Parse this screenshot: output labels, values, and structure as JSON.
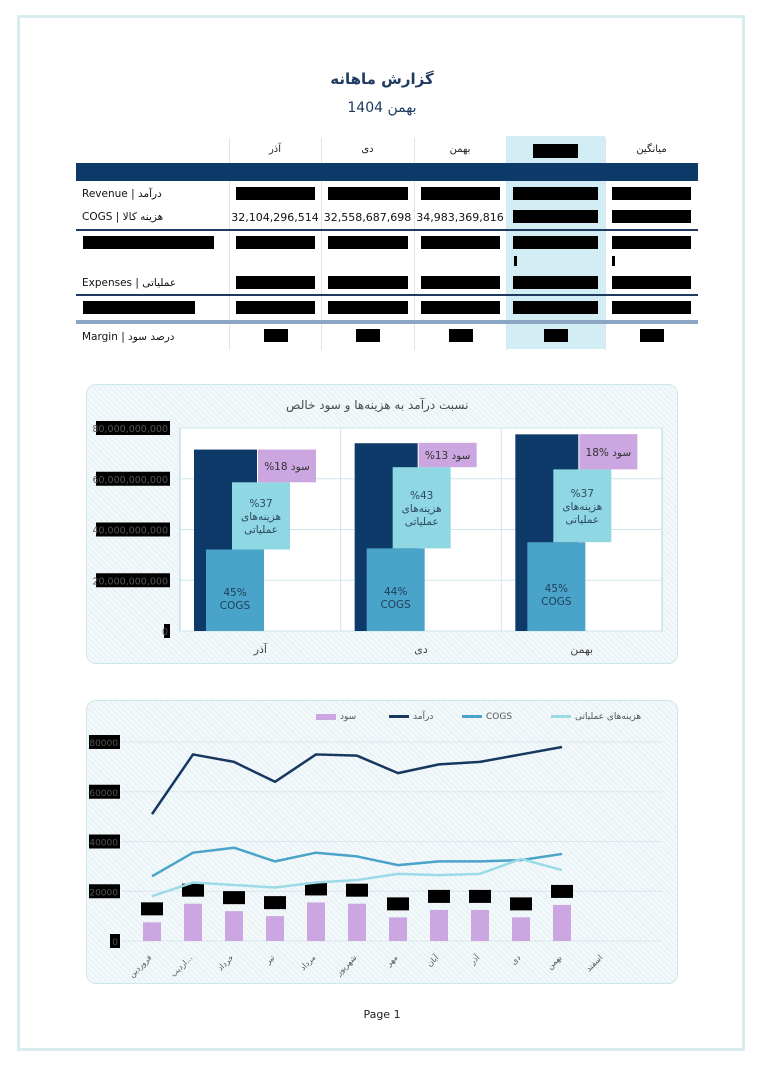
{
  "report": {
    "title": "گزارش ماهانه",
    "subtitle": "بهمن 1404",
    "page": "Page 1"
  },
  "table": {
    "columns": [
      "آذر",
      "دی",
      "بهمن",
      "",
      "میانگین"
    ],
    "rows": [
      {
        "label": "Revenue | درآمد"
      },
      {
        "label": "COGS | هزینه کالا",
        "values": [
          "32,104,296,514",
          "32,558,687,698",
          "34,983,369,816"
        ]
      },
      {
        "label": ""
      },
      {
        "label": "Expenses | عملیاتی"
      },
      {
        "label": ""
      },
      {
        "label": "Margin | درصد سود"
      }
    ]
  },
  "chart_data": [
    {
      "type": "bar",
      "title": "نسبت درآمد به هزینه‌ها و سود خالص",
      "categories": [
        "آذر",
        "دی",
        "بهمن"
      ],
      "y_ticks": [
        "80,000,000,000",
        "60,000,000,000",
        "40,000,000,000",
        "20,000,000,000",
        "0"
      ],
      "ylim": [
        0,
        80000000000
      ],
      "series": [
        {
          "name": "درآمد",
          "values": [
            71500000000,
            74000000000,
            77500000000
          ]
        },
        {
          "name": "COGS",
          "values": [
            32104296514,
            32558687698,
            34983369816
          ],
          "labels": [
            "45%\nCOGS",
            "44%\nCOGS",
            "45%\nCOGS"
          ]
        },
        {
          "name": "هزینه‌های عملیاتی",
          "values": [
            26500000000,
            32000000000,
            28700000000
          ],
          "labels": [
            "%37\nهزینه‌های\nعملیاتی",
            "%43\nهزینه‌های\nعملیاتی",
            "%37\nهزینه‌های\nعملیاتی"
          ]
        },
        {
          "name": "سود",
          "values": [
            12900000000,
            9600000000,
            13900000000
          ],
          "labels": [
            "%18 سود",
            "%13 سود",
            "18% سود"
          ]
        }
      ],
      "colors": {
        "revenue": "#0d3a69",
        "cogs": "#4aa3c8",
        "opex": "#8fd7e2",
        "profit": "#cba6e0"
      }
    },
    {
      "type": "line",
      "legend": [
        "سود",
        "درآمد",
        "COGS",
        "هزینه‌های عملیاتی"
      ],
      "legend_position": "top",
      "categories": [
        "فروردین",
        "اردیب...",
        "خرداد",
        "تیر",
        "مرداد",
        "شهریور",
        "مهر",
        "آبان",
        "آذر",
        "دی",
        "بهمن",
        "اسفند"
      ],
      "y_ticks": [
        "80000",
        "60000",
        "40000",
        "20000",
        "0"
      ],
      "ylim": [
        0,
        80000
      ],
      "series": [
        {
          "name": "درآمد",
          "values": [
            51000,
            75000,
            72000,
            64000,
            75000,
            74500,
            67500,
            71000,
            72000,
            75000,
            78000,
            null
          ]
        },
        {
          "name": "COGS",
          "values": [
            26000,
            35500,
            37500,
            32000,
            35500,
            34000,
            30500,
            32000,
            32000,
            32500,
            35000,
            null
          ]
        },
        {
          "name": "هزینه‌های عملیاتی",
          "values": [
            18000,
            23500,
            22500,
            21500,
            23500,
            24500,
            27000,
            26500,
            27000,
            33000,
            28500,
            null
          ]
        },
        {
          "name": "سود",
          "values": [
            7500,
            15000,
            12000,
            10000,
            15500,
            15000,
            9500,
            12500,
            12500,
            9500,
            14500,
            null
          ]
        }
      ],
      "colors": {
        "revenue": "#17375e",
        "cogs": "#4aa3c8",
        "opex": "#9adbe6",
        "profit": "#cba6e0"
      }
    }
  ]
}
